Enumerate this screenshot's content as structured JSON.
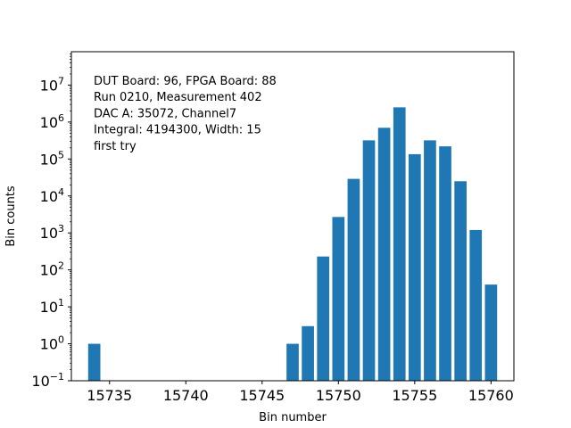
{
  "chart_data": {
    "type": "bar",
    "xlabel": "Bin number",
    "ylabel": "Bin counts",
    "y_scale": "log",
    "xlim": [
      15732.5,
      15761.5
    ],
    "ylim": [
      0.1,
      80000000
    ],
    "x_ticks": [
      15735,
      15740,
      15745,
      15750,
      15755,
      15760
    ],
    "y_ticks": [
      {
        "value": 0.1,
        "base": "10",
        "exp": "−1"
      },
      {
        "value": 1,
        "base": "10",
        "exp": "0"
      },
      {
        "value": 10,
        "base": "10",
        "exp": "1"
      },
      {
        "value": 100,
        "base": "10",
        "exp": "2"
      },
      {
        "value": 1000,
        "base": "10",
        "exp": "3"
      },
      {
        "value": 10000,
        "base": "10",
        "exp": "4"
      },
      {
        "value": 100000,
        "base": "10",
        "exp": "5"
      },
      {
        "value": 1000000,
        "base": "10",
        "exp": "6"
      },
      {
        "value": 10000000,
        "base": "10",
        "exp": "7"
      }
    ],
    "bar_color": "#1f77b4",
    "bars": [
      {
        "x": 15734,
        "value": 1
      },
      {
        "x": 15747,
        "value": 1
      },
      {
        "x": 15748,
        "value": 3
      },
      {
        "x": 15749,
        "value": 230
      },
      {
        "x": 15750,
        "value": 2700
      },
      {
        "x": 15751,
        "value": 29000
      },
      {
        "x": 15752,
        "value": 320000
      },
      {
        "x": 15753,
        "value": 700000
      },
      {
        "x": 15754,
        "value": 2500000
      },
      {
        "x": 15755,
        "value": 135000
      },
      {
        "x": 15756,
        "value": 320000
      },
      {
        "x": 15757,
        "value": 220000
      },
      {
        "x": 15758,
        "value": 25000
      },
      {
        "x": 15759,
        "value": 1200
      },
      {
        "x": 15760,
        "value": 40
      }
    ],
    "annotation_lines": [
      "DUT Board: 96, FPGA Board: 88",
      "Run 0210, Measurement 402",
      "DAC A: 35072, Channel7",
      "Integral: 4194300, Width: 15",
      "first try"
    ],
    "grid": false,
    "legend": "none"
  }
}
